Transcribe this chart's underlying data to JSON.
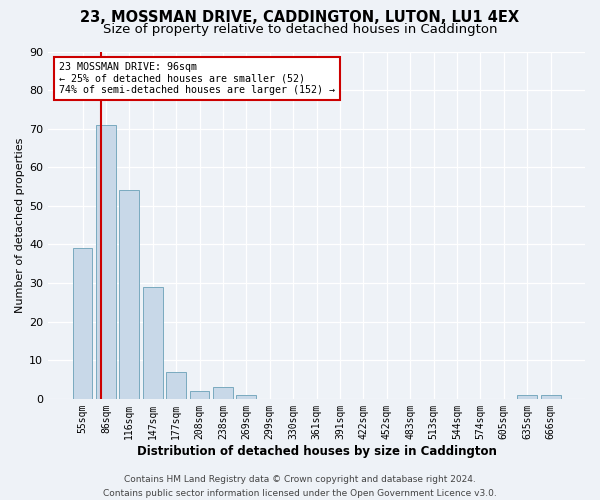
{
  "title1": "23, MOSSMAN DRIVE, CADDINGTON, LUTON, LU1 4EX",
  "title2": "Size of property relative to detached houses in Caddington",
  "xlabel": "Distribution of detached houses by size in Caddington",
  "ylabel": "Number of detached properties",
  "bar_color": "#c8d8e8",
  "bar_edge_color": "#7aaabf",
  "categories": [
    "55sqm",
    "86sqm",
    "116sqm",
    "147sqm",
    "177sqm",
    "208sqm",
    "238sqm",
    "269sqm",
    "299sqm",
    "330sqm",
    "361sqm",
    "391sqm",
    "422sqm",
    "452sqm",
    "483sqm",
    "513sqm",
    "544sqm",
    "574sqm",
    "605sqm",
    "635sqm",
    "666sqm"
  ],
  "values": [
    39,
    71,
    54,
    29,
    7,
    2,
    3,
    1,
    0,
    0,
    0,
    0,
    0,
    0,
    0,
    0,
    0,
    0,
    0,
    1,
    1
  ],
  "ylim": [
    0,
    90
  ],
  "yticks": [
    0,
    10,
    20,
    30,
    40,
    50,
    60,
    70,
    80,
    90
  ],
  "vline_color": "#cc0000",
  "vline_x_index": 1,
  "annotation_text": "23 MOSSMAN DRIVE: 96sqm\n← 25% of detached houses are smaller (52)\n74% of semi-detached houses are larger (152) →",
  "annotation_box_color": "#ffffff",
  "annotation_box_edge": "#cc0000",
  "footer_line1": "Contains HM Land Registry data © Crown copyright and database right 2024.",
  "footer_line2": "Contains public sector information licensed under the Open Government Licence v3.0.",
  "bg_color": "#eef2f7",
  "grid_color": "#ffffff",
  "title1_fontsize": 10.5,
  "title2_fontsize": 9.5,
  "xlabel_fontsize": 8.5,
  "ylabel_fontsize": 8,
  "tick_fontsize": 7,
  "footer_fontsize": 6.5
}
